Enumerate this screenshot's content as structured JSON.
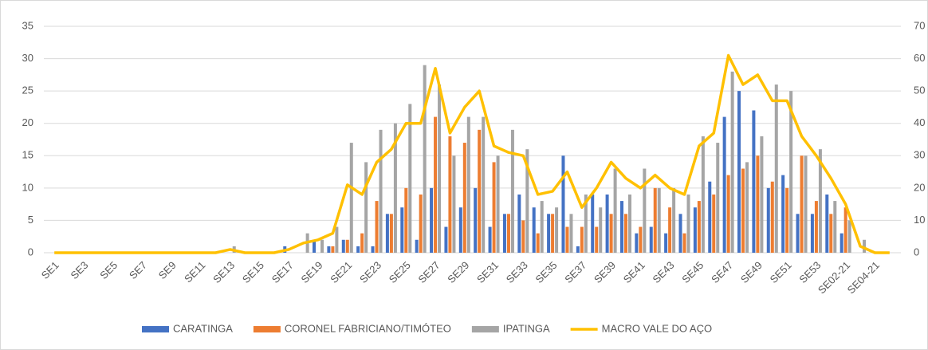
{
  "chart_data": {
    "type": "bar",
    "categories": [
      "SE1",
      null,
      "SE3",
      null,
      "SE5",
      null,
      "SE7",
      null,
      "SE9",
      null,
      "SE11",
      null,
      "SE13",
      null,
      "SE15",
      null,
      "SE17",
      null,
      "SE19",
      null,
      "SE21",
      null,
      "SE23",
      null,
      "SE25",
      null,
      "SE27",
      null,
      "SE29",
      null,
      "SE31",
      null,
      "SE33",
      null,
      "SE35",
      null,
      "SE37",
      null,
      "SE39",
      null,
      "SE41",
      null,
      "SE43",
      null,
      "SE45",
      null,
      "SE47",
      null,
      "SE49",
      null,
      "SE51",
      null,
      "SE53",
      null,
      "SE02-21",
      null,
      "SE04-21",
      null
    ],
    "series": [
      {
        "name": "CARATINGA",
        "color": "#4472c4",
        "values": [
          0,
          0,
          0,
          0,
          0,
          0,
          0,
          0,
          0,
          0,
          0,
          0,
          0,
          0,
          0,
          0,
          1,
          0,
          2,
          1,
          2,
          1,
          1,
          6,
          7,
          2,
          10,
          4,
          7,
          10,
          4,
          6,
          9,
          7,
          6,
          15,
          1,
          9,
          9,
          8,
          3,
          4,
          3,
          6,
          7,
          11,
          21,
          25,
          22,
          10,
          12,
          6,
          6,
          9,
          3,
          0,
          0,
          0
        ]
      },
      {
        "name": "CORONEL FABRICIANO/TIMÓTEO",
        "color": "#ed7d31",
        "values": [
          0,
          0,
          0,
          0,
          0,
          0,
          0,
          0,
          0,
          0,
          0,
          0,
          0,
          0,
          0,
          0,
          0,
          0,
          0,
          1,
          2,
          3,
          8,
          6,
          10,
          9,
          21,
          18,
          17,
          19,
          14,
          6,
          5,
          3,
          6,
          4,
          4,
          4,
          6,
          6,
          4,
          10,
          7,
          3,
          8,
          9,
          12,
          13,
          15,
          11,
          10,
          15,
          8,
          6,
          7,
          0,
          0,
          0
        ]
      },
      {
        "name": "IPATINGA",
        "color": "#a5a5a5",
        "values": [
          0,
          0,
          0,
          0,
          0,
          0,
          0,
          0,
          0,
          0,
          0,
          0,
          1,
          0,
          0,
          0,
          0,
          3,
          2,
          4,
          17,
          14,
          19,
          20,
          23,
          29,
          26,
          15,
          21,
          21,
          15,
          19,
          16,
          8,
          7,
          6,
          9,
          7,
          13,
          9,
          13,
          10,
          10,
          9,
          18,
          17,
          28,
          14,
          18,
          26,
          25,
          15,
          16,
          8,
          5,
          2,
          0,
          0
        ]
      },
      {
        "name": "MACRO VALE DO AÇO",
        "color": "#ffc000",
        "type": "line",
        "axis": "y2",
        "values": [
          0,
          0,
          0,
          0,
          0,
          0,
          0,
          0,
          0,
          0,
          0,
          0,
          1,
          0,
          0,
          0,
          1,
          3,
          4,
          6,
          21,
          18,
          28,
          32,
          40,
          40,
          57,
          37,
          45,
          50,
          33,
          31,
          30,
          18,
          19,
          25,
          14,
          20,
          28,
          23,
          20,
          24,
          20,
          18,
          33,
          37,
          61,
          52,
          55,
          47,
          47,
          36,
          30,
          23,
          15,
          2,
          0,
          0
        ]
      }
    ],
    "ylim": [
      0,
      35
    ],
    "yticks": [
      0,
      5,
      10,
      15,
      20,
      25,
      30,
      35
    ],
    "y2lim": [
      0,
      70
    ],
    "y2ticks": [
      0,
      10,
      20,
      30,
      40,
      50,
      60,
      70
    ],
    "grid": true,
    "legend": "bottom"
  }
}
